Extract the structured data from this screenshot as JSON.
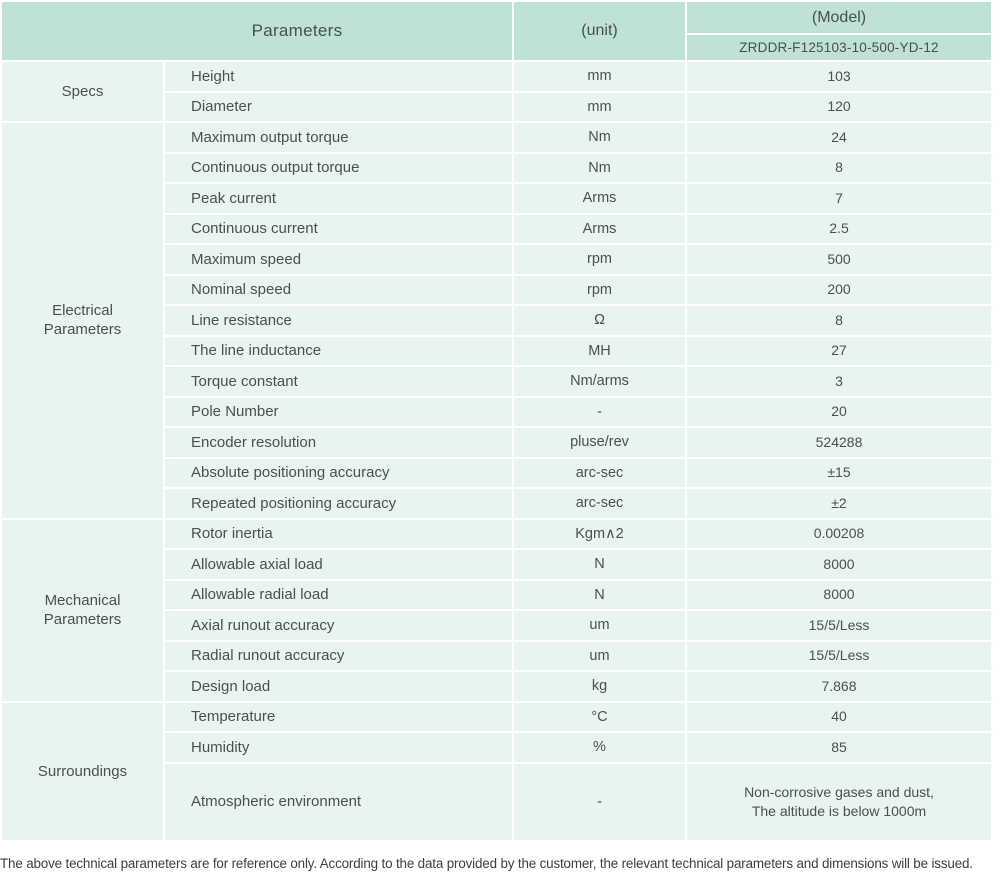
{
  "colors": {
    "header_bg": "#bfe1d7",
    "row_bg": "#e8f4f1",
    "text": "#4c4f4e"
  },
  "header": {
    "parameters_label": "Parameters",
    "unit_label": "(unit)",
    "model_label": "(Model)",
    "model_value": "ZRDDR-F125103-10-500-YD-12"
  },
  "sections": [
    {
      "name": "Specs",
      "rows": [
        {
          "param": "Height",
          "unit": "mm",
          "value": "103"
        },
        {
          "param": "Diameter",
          "unit": "mm",
          "value": "120"
        }
      ]
    },
    {
      "name": "Electrical\nParameters",
      "rows": [
        {
          "param": "Maximum output torque",
          "unit": "Nm",
          "value": "24"
        },
        {
          "param": "Continuous output torque",
          "unit": "Nm",
          "value": "8"
        },
        {
          "param": "Peak current",
          "unit": "Arms",
          "value": "7"
        },
        {
          "param": "Continuous current",
          "unit": "Arms",
          "value": "2.5"
        },
        {
          "param": "Maximum speed",
          "unit": "rpm",
          "value": "500"
        },
        {
          "param": "Nominal speed",
          "unit": "rpm",
          "value": "200"
        },
        {
          "param": "Line resistance",
          "unit": "Ω",
          "value": "8"
        },
        {
          "param": "The line inductance",
          "unit": "MH",
          "value": "27"
        },
        {
          "param": "Torque constant",
          "unit": "Nm/arms",
          "value": "3"
        },
        {
          "param": "Pole Number",
          "unit": "-",
          "value": "20"
        },
        {
          "param": "Encoder resolution",
          "unit": "pluse/rev",
          "value": "524288"
        },
        {
          "param": "Absolute positioning accuracy",
          "unit": "arc-sec",
          "value": "±15"
        },
        {
          "param": "Repeated positioning accuracy",
          "unit": "arc-sec",
          "value": "±2"
        }
      ]
    },
    {
      "name": "Mechanical\nParameters",
      "rows": [
        {
          "param": "Rotor inertia",
          "unit": "Kgm∧2",
          "value": "0.00208"
        },
        {
          "param": "Allowable axial load",
          "unit": "N",
          "value": "8000"
        },
        {
          "param": "Allowable radial load",
          "unit": "N",
          "value": "8000"
        },
        {
          "param": "Axial runout accuracy",
          "unit": "um",
          "value": "15/5/Less"
        },
        {
          "param": "Radial runout accuracy",
          "unit": "um",
          "value": "15/5/Less"
        },
        {
          "param": "Design load",
          "unit": "kg",
          "value": "7.868"
        }
      ]
    },
    {
      "name": "Surroundings",
      "rows": [
        {
          "param": "Temperature",
          "unit": "°C",
          "value": "40"
        },
        {
          "param": "Humidity",
          "unit": "%",
          "value": "85"
        },
        {
          "param": "Atmospheric environment",
          "unit": "-",
          "value": "Non-corrosive gases and dust,\nThe altitude is below 1000m",
          "tall": true
        }
      ]
    }
  ],
  "footer": {
    "note": "The above technical parameters are for reference only. According to the data provided by the customer, the relevant technical parameters and dimensions will be issued."
  }
}
